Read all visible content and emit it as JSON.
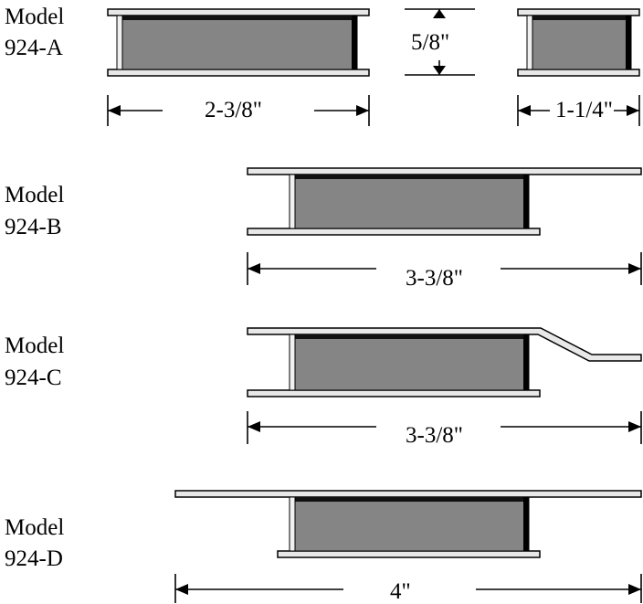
{
  "models": [
    {
      "label_line1": "Model",
      "label_line2": "924-A",
      "dimension_width": "2-3/8\"",
      "dimension_side": "1-1/4\"",
      "dimension_height": "5/8\""
    },
    {
      "label_line1": "Model",
      "label_line2": "924-B",
      "dimension_width": "3-3/8\""
    },
    {
      "label_line1": "Model",
      "label_line2": "924-C",
      "dimension_width": "3-3/8\""
    },
    {
      "label_line1": "Model",
      "label_line2": "924-D",
      "dimension_width": "4\""
    }
  ]
}
